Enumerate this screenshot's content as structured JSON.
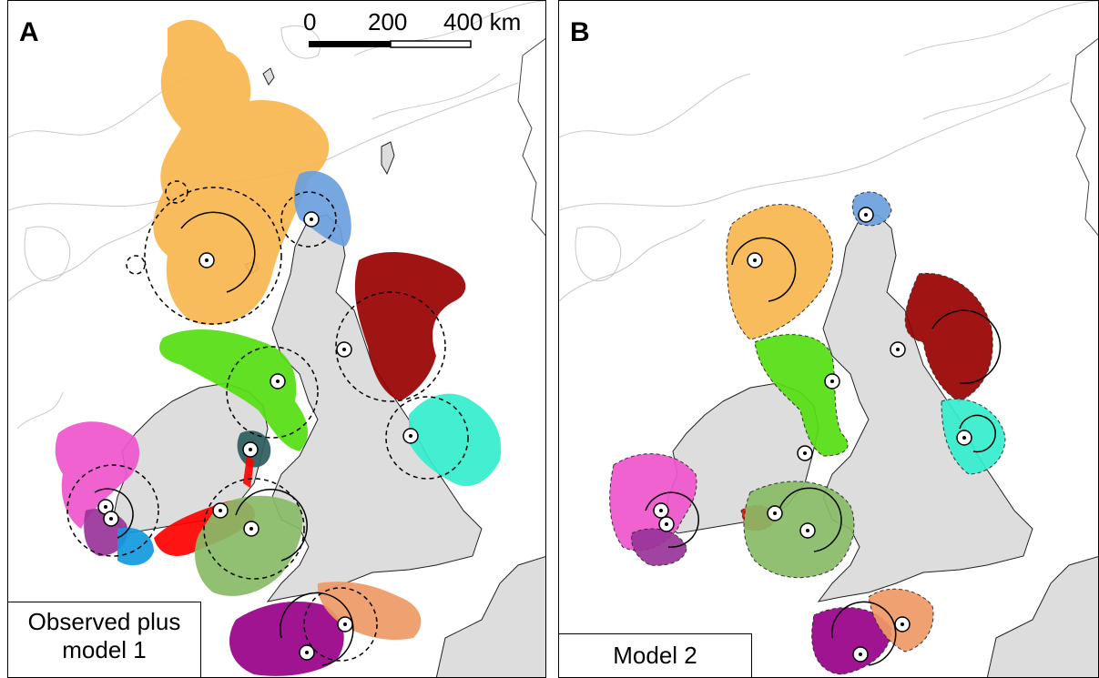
{
  "panels": [
    {
      "letter": "A",
      "caption_line1": "Observed plus",
      "caption_line2": "model 1"
    },
    {
      "letter": "B",
      "caption": "Model 2"
    }
  ],
  "scale_bar": {
    "tick0": "0",
    "tick1": "200",
    "tick2": "400 km"
  },
  "colors": {
    "land": "#dddddd",
    "orange": "#f9b64e",
    "blue": "#6a9fdd",
    "darkred": "#990000",
    "green": "#55dd11",
    "darkteal": "#2b5c5c",
    "red": "#ff0000",
    "olive": "#8a5a10",
    "lightgreen": "#88bb66",
    "turquoise": "#33eecc",
    "pink": "#ee55cc",
    "purple": "#993399",
    "cyan": "#1199dd",
    "magenta": "#990088",
    "salmon": "#ee9966"
  }
}
